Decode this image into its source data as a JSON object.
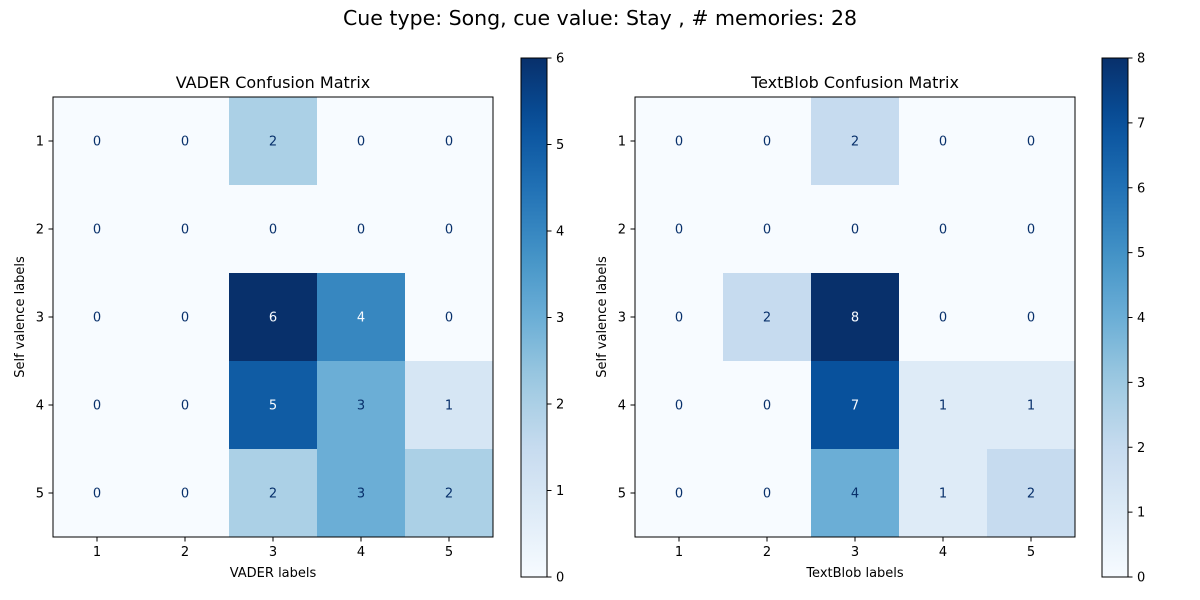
{
  "suptitle": "Cue type: Song, cue value: Stay , # memories: 28",
  "chart_data": [
    {
      "type": "heatmap",
      "title": "VADER Confusion Matrix",
      "xlabel": "VADER labels",
      "ylabel": "Self valence labels",
      "x_categories": [
        "1",
        "2",
        "3",
        "4",
        "5"
      ],
      "y_categories": [
        "1",
        "2",
        "3",
        "4",
        "5"
      ],
      "matrix": [
        [
          0,
          0,
          2,
          0,
          0
        ],
        [
          0,
          0,
          0,
          0,
          0
        ],
        [
          0,
          0,
          6,
          4,
          0
        ],
        [
          0,
          0,
          5,
          3,
          1
        ],
        [
          0,
          0,
          2,
          3,
          2
        ]
      ],
      "colormap": "Blues",
      "colorbar": {
        "min": 0,
        "max": 6,
        "ticks": [
          "0",
          "1",
          "2",
          "3",
          "4",
          "5",
          "6"
        ]
      }
    },
    {
      "type": "heatmap",
      "title": "TextBlob Confusion Matrix",
      "xlabel": "TextBlob labels",
      "ylabel": "Self valence labels",
      "x_categories": [
        "1",
        "2",
        "3",
        "4",
        "5"
      ],
      "y_categories": [
        "1",
        "2",
        "3",
        "4",
        "5"
      ],
      "matrix": [
        [
          0,
          0,
          2,
          0,
          0
        ],
        [
          0,
          0,
          0,
          0,
          0
        ],
        [
          0,
          2,
          8,
          0,
          0
        ],
        [
          0,
          0,
          7,
          1,
          1
        ],
        [
          0,
          0,
          4,
          1,
          2
        ]
      ],
      "colormap": "Blues",
      "colorbar": {
        "min": 0,
        "max": 8,
        "ticks": [
          "0",
          "1",
          "2",
          "3",
          "4",
          "5",
          "6",
          "7",
          "8"
        ]
      }
    }
  ]
}
